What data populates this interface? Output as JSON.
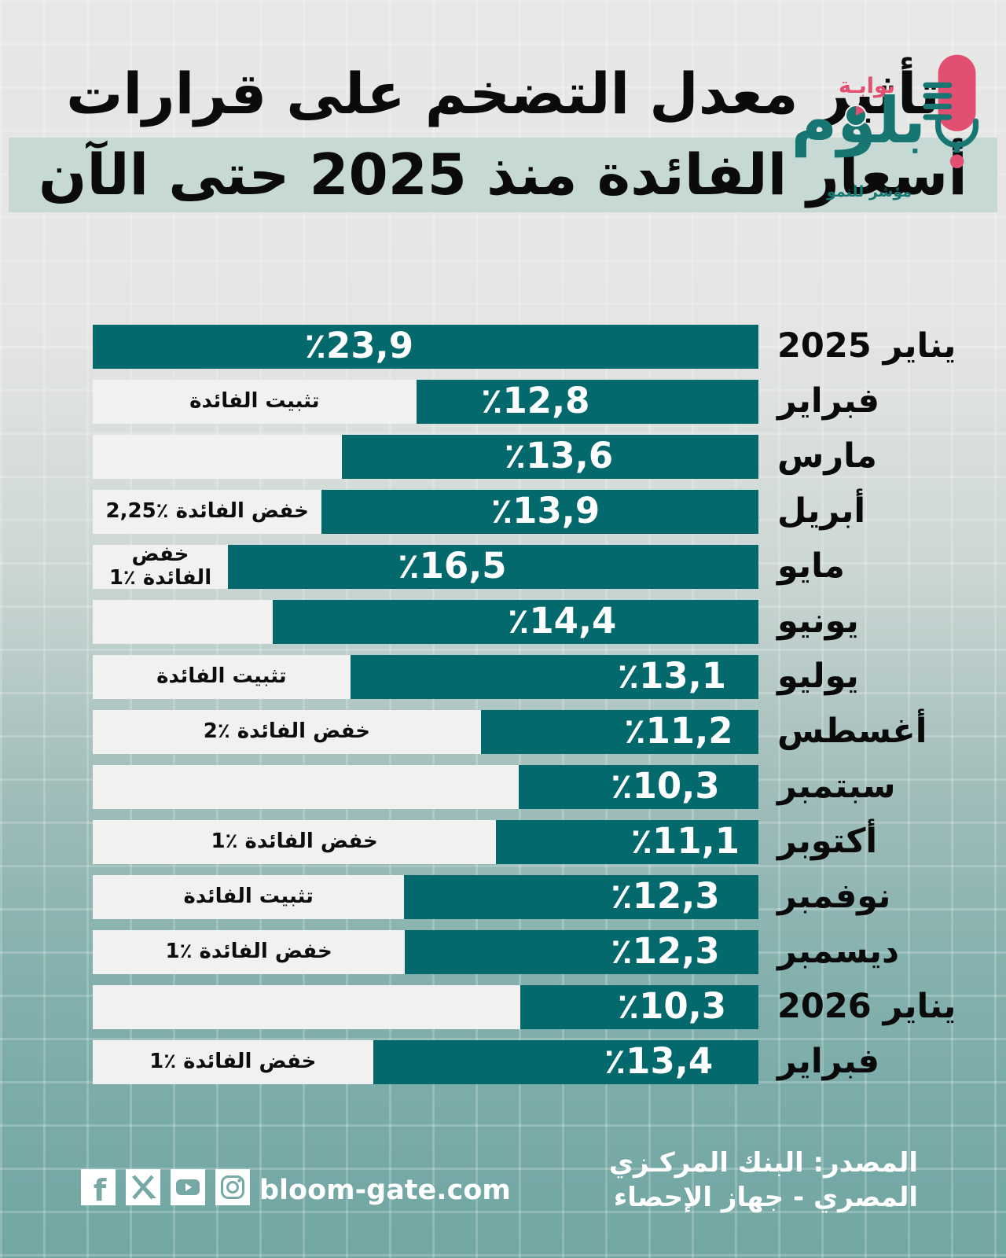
{
  "title": {
    "line1": "تأثير معدل التضخم على قرارات",
    "line2": "أسعار الفائدة منذ 2025 حتى الآن"
  },
  "logo": {
    "top_text": "بوابـة",
    "name": "بلوم",
    "tagline": "مؤشر للنمو"
  },
  "chart_data": {
    "type": "bar",
    "orientation": "horizontal",
    "title": "تأثير معدل التضخم على قرارات أسعار الفائدة منذ 2025 حتى الآن",
    "unit": "%",
    "xlim": [
      0,
      23.9
    ],
    "grid": false,
    "categories": [
      "يناير 2025",
      "فبراير",
      "مارس",
      "أبريل",
      "مايو",
      "يونيو",
      "يوليو",
      "أغسطس",
      "سبتمبر",
      "أكتوبر",
      "نوفمبر",
      "ديسمبر",
      "يناير 2026",
      "فبراير"
    ],
    "values": [
      23.9,
      12.8,
      13.6,
      13.9,
      16.5,
      14.4,
      13.1,
      11.2,
      10.3,
      11.1,
      12.3,
      12.3,
      10.3,
      13.4
    ],
    "rows": [
      {
        "month": "يناير 2025",
        "value": 23.9,
        "value_label": "٪23,9",
        "annotation": "",
        "bar_pct": 100,
        "value_x_pct": 40
      },
      {
        "month": "فبراير",
        "value": 12.8,
        "value_label": "٪12,8",
        "annotation": "تثبيت الفائدة",
        "bar_pct": 51.4,
        "value_x_pct": 66.5
      },
      {
        "month": "مارس",
        "value": 13.6,
        "value_label": "٪13,6",
        "annotation": "",
        "bar_pct": 62.6,
        "value_x_pct": 70
      },
      {
        "month": "أبريل",
        "value": 13.9,
        "value_label": "٪13,9",
        "annotation": "خفض الفائدة ٪2,25",
        "bar_pct": 65.6,
        "value_x_pct": 68
      },
      {
        "month": "مايو",
        "value": 16.5,
        "value_label": "٪16,5",
        "annotation": "خفض الفائدة ٪1",
        "bar_pct": 79.7,
        "value_x_pct": 54
      },
      {
        "month": "يونيو",
        "value": 14.4,
        "value_label": "٪14,4",
        "annotation": "",
        "bar_pct": 73.0,
        "value_x_pct": 70.5
      },
      {
        "month": "يوليو",
        "value": 13.1,
        "value_label": "٪13,1",
        "annotation": "تثبيت الفائدة",
        "bar_pct": 61.3,
        "value_x_pct": 87
      },
      {
        "month": "أغسطس",
        "value": 11.2,
        "value_label": "٪11,2",
        "annotation": "خفض الفائدة ٪2",
        "bar_pct": 41.7,
        "value_x_pct": 88
      },
      {
        "month": "سبتمبر",
        "value": 10.3,
        "value_label": "٪10,3",
        "annotation": "",
        "bar_pct": 36.0,
        "value_x_pct": 86
      },
      {
        "month": "أكتوبر",
        "value": 11.1,
        "value_label": "٪11,1",
        "annotation": "خفض الفائدة ٪1",
        "bar_pct": 39.4,
        "value_x_pct": 89
      },
      {
        "month": "نوفمبر",
        "value": 12.3,
        "value_label": "٪12,3",
        "annotation": "تثبيت الفائدة",
        "bar_pct": 53.2,
        "value_x_pct": 86
      },
      {
        "month": "ديسمبر",
        "value": 12.3,
        "value_label": "٪12,3",
        "annotation": "خفض الفائدة ٪1",
        "bar_pct": 53.1,
        "value_x_pct": 86
      },
      {
        "month": "يناير 2026",
        "value": 10.3,
        "value_label": "٪10,3",
        "annotation": "",
        "bar_pct": 35.8,
        "value_x_pct": 87
      },
      {
        "month": "فبراير",
        "value": 13.4,
        "value_label": "٪13,4",
        "annotation": "خفض الفائدة ٪1",
        "bar_pct": 57.9,
        "value_x_pct": 85
      }
    ]
  },
  "footer": {
    "website": "bloom-gate.com",
    "source_line1": "المصدر: البنك المركـزي",
    "source_line2": "المصري - جهاز الإحصاء",
    "social_icons": [
      "facebook",
      "x",
      "youtube",
      "instagram"
    ]
  },
  "colors": {
    "bar_fill": "#04696c",
    "bar_track": "#f1f1ef",
    "title_highlight": "#c6d9d5",
    "logo_pink": "#e34f70",
    "logo_teal": "#177672",
    "background_top": "#e6e6e5",
    "background_bottom": "#74a8a5",
    "text_dark": "#0b0b0b",
    "text_light": "#ffffff"
  }
}
